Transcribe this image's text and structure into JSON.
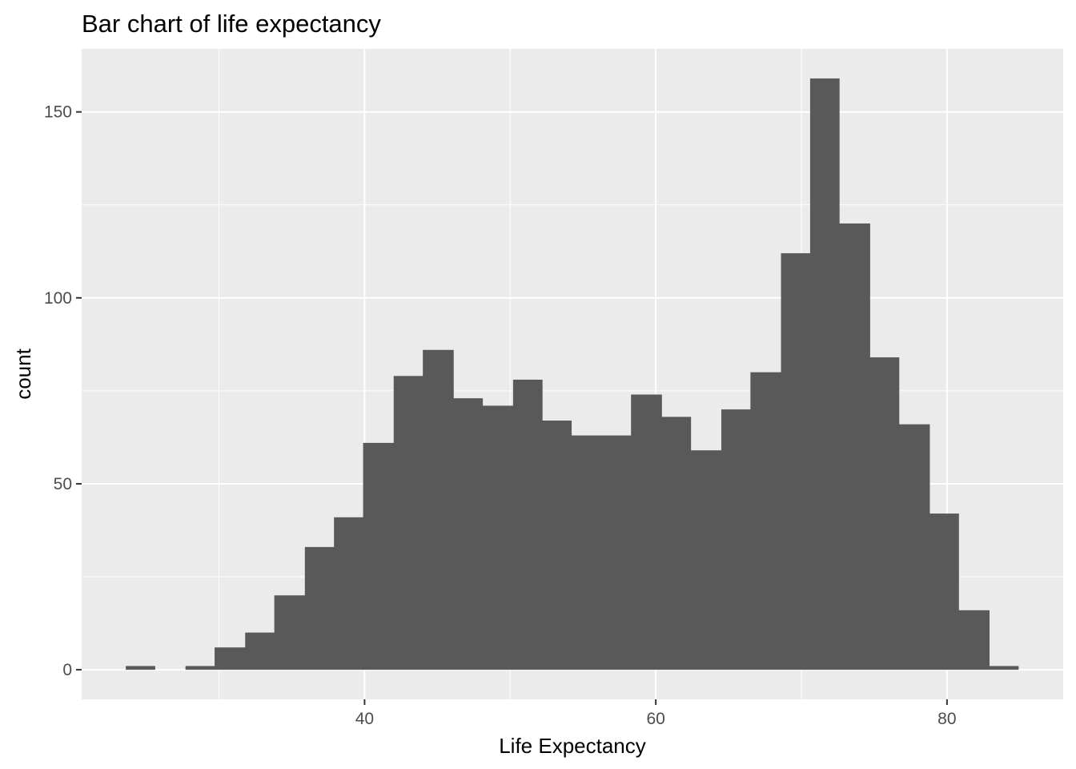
{
  "chart_data": {
    "type": "bar",
    "title": "Bar chart of life expectancy",
    "xlabel": "Life Expectancy",
    "ylabel": "count",
    "bin_width": 2.04,
    "bins": [
      {
        "x0": 23.6,
        "x1": 25.6,
        "count": 1
      },
      {
        "x0": 25.6,
        "x1": 27.7,
        "count": 0
      },
      {
        "x0": 27.7,
        "x1": 29.7,
        "count": 1
      },
      {
        "x0": 29.7,
        "x1": 31.8,
        "count": 6
      },
      {
        "x0": 31.8,
        "x1": 33.8,
        "count": 10
      },
      {
        "x0": 33.8,
        "x1": 35.9,
        "count": 20
      },
      {
        "x0": 35.9,
        "x1": 37.9,
        "count": 33
      },
      {
        "x0": 37.9,
        "x1": 39.9,
        "count": 41
      },
      {
        "x0": 39.9,
        "x1": 42.0,
        "count": 61
      },
      {
        "x0": 42.0,
        "x1": 44.0,
        "count": 79
      },
      {
        "x0": 44.0,
        "x1": 46.1,
        "count": 86
      },
      {
        "x0": 46.1,
        "x1": 48.1,
        "count": 73
      },
      {
        "x0": 48.1,
        "x1": 50.2,
        "count": 71
      },
      {
        "x0": 50.2,
        "x1": 52.2,
        "count": 78
      },
      {
        "x0": 52.2,
        "x1": 54.2,
        "count": 67
      },
      {
        "x0": 54.2,
        "x1": 56.3,
        "count": 63
      },
      {
        "x0": 56.3,
        "x1": 58.3,
        "count": 63
      },
      {
        "x0": 58.3,
        "x1": 60.4,
        "count": 74
      },
      {
        "x0": 60.4,
        "x1": 62.4,
        "count": 68
      },
      {
        "x0": 62.4,
        "x1": 64.5,
        "count": 59
      },
      {
        "x0": 64.5,
        "x1": 66.5,
        "count": 70
      },
      {
        "x0": 66.5,
        "x1": 68.6,
        "count": 80
      },
      {
        "x0": 68.6,
        "x1": 70.6,
        "count": 112
      },
      {
        "x0": 70.6,
        "x1": 72.6,
        "count": 159
      },
      {
        "x0": 72.6,
        "x1": 74.7,
        "count": 120
      },
      {
        "x0": 74.7,
        "x1": 76.7,
        "count": 84
      },
      {
        "x0": 76.7,
        "x1": 78.8,
        "count": 66
      },
      {
        "x0": 78.8,
        "x1": 80.8,
        "count": 42
      },
      {
        "x0": 80.8,
        "x1": 82.9,
        "count": 16
      },
      {
        "x0": 82.9,
        "x1": 84.9,
        "count": 1
      }
    ],
    "xlim": [
      20.57,
      87.98
    ],
    "ylim": [
      -7.95,
      166.95
    ],
    "x_ticks": [
      40,
      60,
      80
    ],
    "x_minor_ticks": [
      30,
      50,
      70
    ],
    "y_ticks": [
      0,
      50,
      100,
      150
    ],
    "y_minor_ticks": [
      25,
      75,
      125
    ],
    "grid": true,
    "legend": "none",
    "colors": {
      "bar": "#595959",
      "panel": "#ebebeb",
      "grid": "#ffffff",
      "tick": "#333333"
    }
  }
}
